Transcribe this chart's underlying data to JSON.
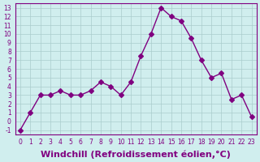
{
  "x": [
    0,
    1,
    2,
    3,
    4,
    5,
    6,
    7,
    8,
    9,
    10,
    11,
    12,
    13,
    14,
    15,
    16,
    17,
    18,
    19,
    20,
    21,
    22,
    23
  ],
  "y": [
    -1,
    1,
    3,
    3,
    3.5,
    3,
    3,
    3.5,
    4.5,
    4,
    3,
    4.5,
    7.5,
    10,
    13,
    12,
    11.5,
    9.5,
    7,
    5,
    5.5,
    2.5,
    3,
    0.5
  ],
  "line_color": "#800080",
  "marker": "D",
  "marker_size": 3,
  "bg_color": "#d0eeee",
  "grid_color": "#aacccc",
  "xlabel": "Windchill (Refroidissement éolien,°C)",
  "xlabel_fontsize": 8,
  "xlim": [
    -0.5,
    23.5
  ],
  "ylim": [
    -1.5,
    13.5
  ],
  "yticks": [
    -1,
    0,
    1,
    2,
    3,
    4,
    5,
    6,
    7,
    8,
    9,
    10,
    11,
    12,
    13
  ],
  "xticks": [
    0,
    1,
    2,
    3,
    4,
    5,
    6,
    7,
    8,
    9,
    10,
    11,
    12,
    13,
    14,
    15,
    16,
    17,
    18,
    19,
    20,
    21,
    22,
    23
  ]
}
